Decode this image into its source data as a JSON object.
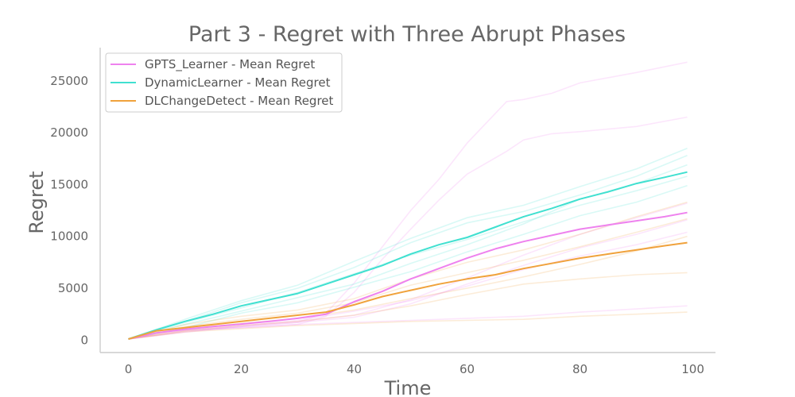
{
  "chart_data": {
    "type": "line",
    "title": "Part 3 - Regret with Three Abrupt Phases",
    "xlabel": "Time",
    "ylabel": "Regret",
    "xlim": [
      -5,
      104
    ],
    "ylim": [
      -1200,
      28200
    ],
    "xticks": [
      0,
      20,
      40,
      60,
      80,
      100
    ],
    "yticks": [
      0,
      5000,
      10000,
      15000,
      20000,
      25000
    ],
    "xtick_labels": [
      "0",
      "20",
      "40",
      "60",
      "80",
      "100"
    ],
    "ytick_labels": [
      "0",
      "5000",
      "10000",
      "15000",
      "20000",
      "25000"
    ],
    "grid": false,
    "legend_position": "top-left",
    "series": [
      {
        "name": "GPTS_Learner - Mean Regret",
        "color": "#ee82ee",
        "x": [
          0,
          5,
          10,
          15,
          20,
          25,
          30,
          35,
          40,
          45,
          50,
          55,
          60,
          65,
          70,
          75,
          80,
          85,
          90,
          95,
          99
        ],
        "values": [
          100,
          700,
          1050,
          1300,
          1550,
          1800,
          2100,
          2500,
          3700,
          4700,
          5900,
          6900,
          7900,
          8800,
          9500,
          10100,
          10700,
          11100,
          11500,
          11900,
          12300
        ],
        "runs": [
          {
            "x": [
              0,
              5,
              10,
              20,
              30,
              35,
              40,
              45,
              50,
              55,
              60,
              67,
              70,
              75,
              80,
              90,
              99
            ],
            "values": [
              100,
              700,
              1000,
              1300,
              1700,
              2600,
              5500,
              9000,
              12500,
              15500,
              19000,
              23000,
              23200,
              23800,
              24800,
              25800,
              26800
            ]
          },
          {
            "x": [
              0,
              5,
              10,
              20,
              30,
              35,
              40,
              45,
              50,
              55,
              60,
              67,
              70,
              75,
              80,
              90,
              99
            ],
            "values": [
              100,
              650,
              950,
              1200,
              1500,
              2300,
              4600,
              7800,
              10700,
              13500,
              16000,
              18200,
              19300,
              19900,
              20100,
              20600,
              21500
            ]
          },
          {
            "x": [
              0,
              10,
              20,
              30,
              40,
              50,
              60,
              70,
              80,
              90,
              99
            ],
            "values": [
              100,
              900,
              1400,
              1800,
              2400,
              3900,
              6000,
              8200,
              10200,
              11800,
              13200
            ]
          },
          {
            "x": [
              0,
              10,
              20,
              30,
              40,
              50,
              60,
              70,
              80,
              90,
              99
            ],
            "values": [
              100,
              800,
              1300,
              1700,
              2200,
              3500,
              5400,
              7200,
              8900,
              10200,
              11600
            ]
          },
          {
            "x": [
              0,
              10,
              20,
              30,
              40,
              50,
              60,
              70,
              80,
              90,
              99
            ],
            "values": [
              100,
              900,
              1200,
              1500,
              1700,
              1900,
              2100,
              2300,
              2700,
              3000,
              3300
            ]
          },
          {
            "x": [
              0,
              10,
              20,
              30,
              40,
              50,
              60,
              70,
              80,
              90,
              99
            ],
            "values": [
              100,
              750,
              1350,
              1900,
              2800,
              3800,
              5200,
              6800,
              8100,
              9200,
              10400
            ]
          }
        ]
      },
      {
        "name": "DynamicLearner - Mean Regret",
        "color": "#40e0d0",
        "x": [
          0,
          5,
          10,
          15,
          20,
          25,
          30,
          35,
          40,
          45,
          50,
          55,
          60,
          65,
          70,
          75,
          80,
          85,
          90,
          95,
          99
        ],
        "values": [
          100,
          1000,
          1800,
          2500,
          3300,
          3900,
          4500,
          5400,
          6300,
          7200,
          8300,
          9200,
          9900,
          10900,
          11900,
          12700,
          13600,
          14300,
          15100,
          15700,
          16200
        ],
        "runs": [
          {
            "x": [
              0,
              10,
              20,
              30,
              40,
              50,
              60,
              70,
              80,
              90,
              99
            ],
            "values": [
              100,
              2000,
              3800,
              5300,
              7600,
              9800,
              11800,
              13000,
              14800,
              16500,
              18500
            ]
          },
          {
            "x": [
              0,
              10,
              20,
              30,
              40,
              50,
              60,
              70,
              80,
              90,
              99
            ],
            "values": [
              100,
              1800,
              3600,
              5000,
              7000,
              9400,
              11300,
              12400,
              14000,
              15800,
              17800
            ]
          },
          {
            "x": [
              0,
              10,
              20,
              30,
              40,
              50,
              60,
              70,
              80,
              90,
              99
            ],
            "values": [
              100,
              1500,
              2800,
              4100,
              5400,
              7400,
              9200,
              11200,
              13600,
              15100,
              16900
            ]
          },
          {
            "x": [
              0,
              10,
              20,
              30,
              40,
              50,
              60,
              70,
              80,
              90,
              99
            ],
            "values": [
              100,
              1700,
              3100,
              4600,
              6400,
              8200,
              9700,
              11400,
              13000,
              14400,
              15800
            ]
          },
          {
            "x": [
              0,
              10,
              20,
              30,
              40,
              50,
              60,
              70,
              80,
              90,
              99
            ],
            "values": [
              100,
              1200,
              2600,
              3600,
              5100,
              6600,
              8500,
              10200,
              12000,
              13300,
              14900
            ]
          }
        ]
      },
      {
        "name": "DLChangeDetect - Mean Regret",
        "color": "#f0a23c",
        "x": [
          0,
          5,
          10,
          15,
          20,
          25,
          30,
          35,
          40,
          45,
          50,
          55,
          60,
          65,
          70,
          75,
          80,
          85,
          90,
          95,
          99
        ],
        "values": [
          100,
          900,
          1200,
          1500,
          1800,
          2100,
          2400,
          2700,
          3400,
          4200,
          4800,
          5400,
          5900,
          6300,
          6900,
          7400,
          7900,
          8300,
          8700,
          9100,
          9400
        ],
        "runs": [
          {
            "x": [
              0,
              10,
              20,
              30,
              40,
              50,
              60,
              70,
              80,
              90,
              99
            ],
            "values": [
              100,
              1500,
              2300,
              2900,
              4000,
              5900,
              7500,
              8700,
              10200,
              11900,
              13300
            ]
          },
          {
            "x": [
              0,
              10,
              20,
              30,
              40,
              50,
              60,
              70,
              80,
              90,
              99
            ],
            "values": [
              100,
              1300,
              2000,
              2600,
              3600,
              5300,
              6500,
              7700,
              9000,
              10400,
              11700
            ]
          },
          {
            "x": [
              0,
              10,
              20,
              30,
              40,
              50,
              60,
              70,
              80,
              90,
              99
            ],
            "values": [
              100,
              1100,
              1600,
              2100,
              2900,
              4000,
              5000,
              6100,
              7300,
              8600,
              10000
            ]
          },
          {
            "x": [
              0,
              10,
              20,
              30,
              40,
              50,
              60,
              70,
              80,
              90,
              99
            ],
            "values": [
              100,
              900,
              1400,
              1800,
              2400,
              3300,
              4400,
              5400,
              5900,
              6300,
              6500
            ]
          },
          {
            "x": [
              0,
              10,
              20,
              30,
              40,
              50,
              60,
              70,
              80,
              90,
              99
            ],
            "values": [
              100,
              800,
              1100,
              1400,
              1600,
              1800,
              1900,
              2000,
              2300,
              2500,
              2700
            ]
          }
        ]
      }
    ]
  }
}
